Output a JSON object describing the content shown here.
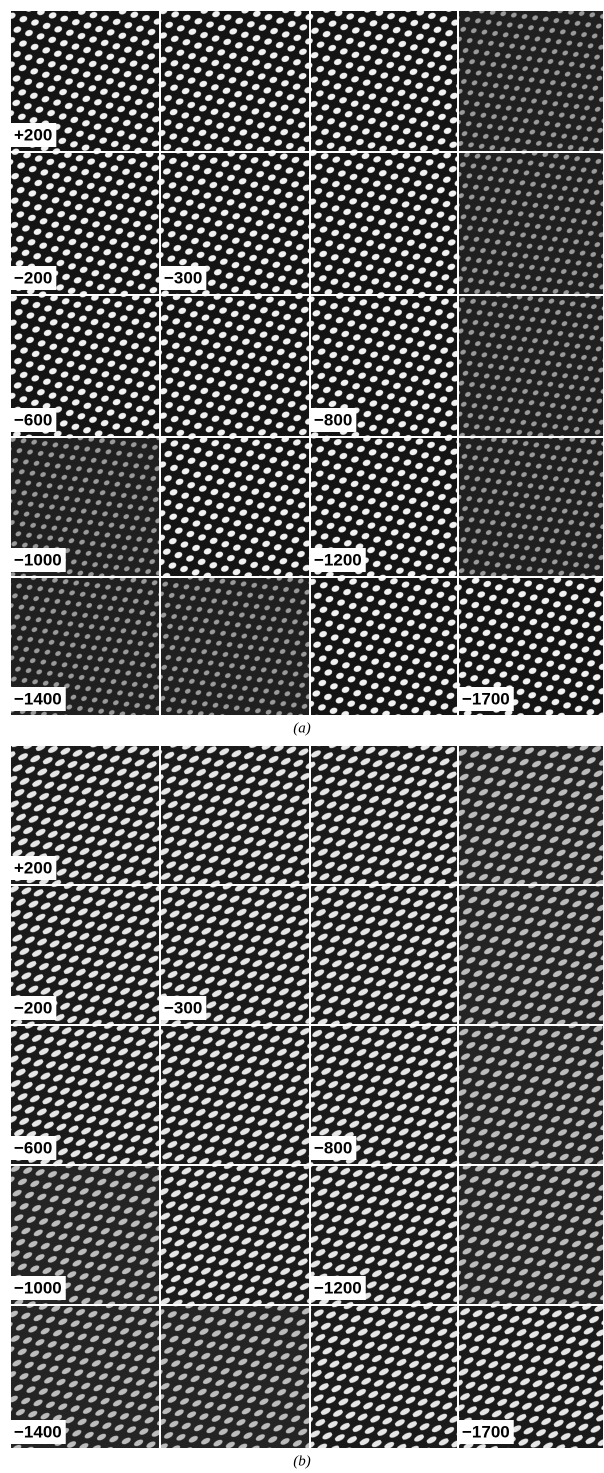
{
  "panels": [
    {
      "caption": "(a)",
      "grid": [
        [
          "+200",
          null,
          null,
          null
        ],
        [
          "−200",
          "−300",
          null,
          null
        ],
        [
          "−600",
          null,
          "−800",
          null
        ],
        [
          "−1000",
          null,
          "−1200",
          null
        ],
        [
          "−1400",
          null,
          null,
          "−1700"
        ]
      ]
    },
    {
      "caption": "(b)",
      "grid": [
        [
          "+200",
          null,
          null,
          null
        ],
        [
          "−200",
          "−300",
          null,
          null
        ],
        [
          "−600",
          null,
          "−800",
          null
        ],
        [
          "−1000",
          null,
          "−1200",
          null
        ],
        [
          "−1400",
          null,
          null,
          "−1700"
        ]
      ]
    }
  ]
}
